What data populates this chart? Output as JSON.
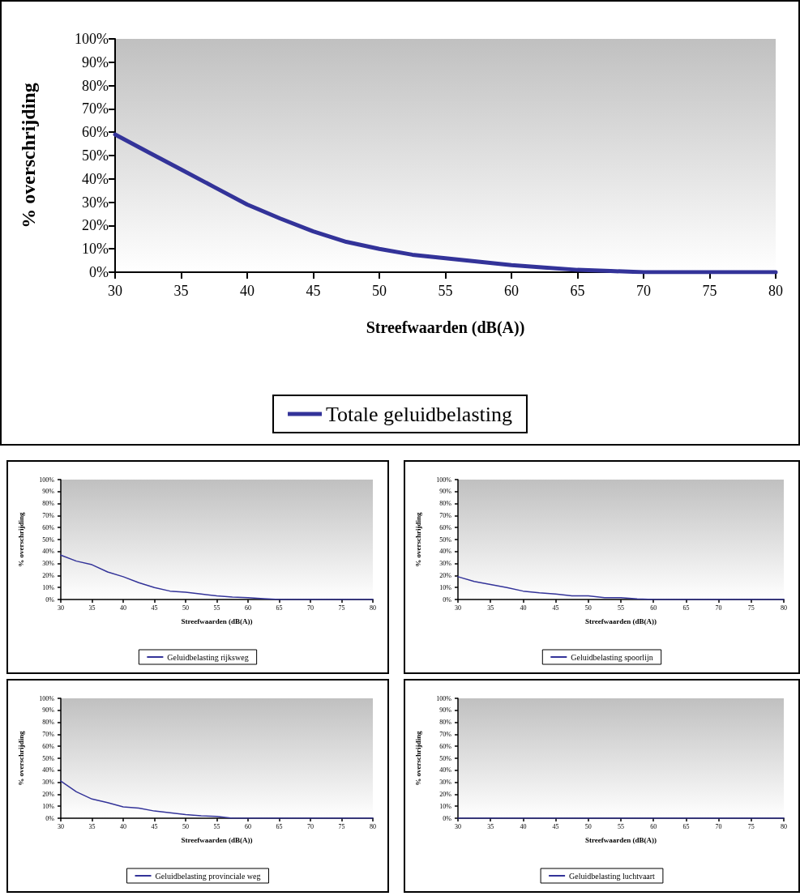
{
  "chart_data": [
    {
      "type": "line",
      "xlabel": "Streefwaarden (dB(A))",
      "ylabel": "% overschrijding",
      "x": [
        30,
        32.5,
        35,
        37.5,
        40,
        42.5,
        45,
        47.5,
        50,
        52.5,
        55,
        57.5,
        60,
        62.5,
        65,
        67.5,
        70,
        72.5,
        75,
        77.5,
        80
      ],
      "series": [
        {
          "name": "Totale geluidbelasting",
          "color": "#333399",
          "values": [
            59,
            51.5,
            44,
            36.5,
            29,
            23,
            17.5,
            13,
            10,
            7.5,
            6,
            4.5,
            3,
            2,
            1,
            0.5,
            0,
            0,
            0,
            0,
            0
          ]
        }
      ],
      "xlim": [
        30,
        80
      ],
      "xticks": [
        30,
        35,
        40,
        45,
        50,
        55,
        60,
        65,
        70,
        75,
        80
      ],
      "ylim": [
        0,
        100
      ],
      "yticks": [
        {
          "value": 0,
          "label": "0%"
        },
        {
          "value": 10,
          "label": "10%"
        },
        {
          "value": 20,
          "label": "20%"
        },
        {
          "value": 30,
          "label": "30%"
        },
        {
          "value": 40,
          "label": "40%"
        },
        {
          "value": 50,
          "label": "50%"
        },
        {
          "value": 60,
          "label": "60%"
        },
        {
          "value": 70,
          "label": "70%"
        },
        {
          "value": 80,
          "label": "80%"
        },
        {
          "value": 90,
          "label": "90%"
        },
        {
          "value": 100,
          "label": "100%"
        }
      ],
      "grid": false,
      "legend": "bottom",
      "marker": "none",
      "line_style": "solid"
    },
    {
      "type": "line",
      "xlabel": "Streefwaarden (dB(A))",
      "ylabel": "% overschrijding",
      "x": [
        30,
        32.5,
        35,
        37.5,
        40,
        42.5,
        45,
        47.5,
        50,
        52.5,
        55,
        57.5,
        60,
        62.5,
        65,
        67.5,
        70,
        72.5,
        75,
        77.5,
        80
      ],
      "series": [
        {
          "name": "Geluidbelasting rijksweg",
          "color": "#333399",
          "values": [
            37,
            32,
            29,
            23,
            19,
            14,
            10,
            7,
            6,
            4.5,
            3,
            2,
            1.5,
            0.7,
            0,
            0,
            0,
            0,
            0,
            0,
            0
          ]
        }
      ],
      "xlim": [
        30,
        80
      ],
      "xticks": [
        30,
        35,
        40,
        45,
        50,
        55,
        60,
        65,
        70,
        75,
        80
      ],
      "ylim": [
        0,
        100
      ],
      "yticks": [
        {
          "value": 0,
          "label": "0%"
        },
        {
          "value": 10,
          "label": "10%"
        },
        {
          "value": 20,
          "label": "20%"
        },
        {
          "value": 30,
          "label": "30%"
        },
        {
          "value": 40,
          "label": "40%"
        },
        {
          "value": 50,
          "label": "50%"
        },
        {
          "value": 60,
          "label": "60%"
        },
        {
          "value": 70,
          "label": "70%"
        },
        {
          "value": 80,
          "label": "80%"
        },
        {
          "value": 90,
          "label": "90%"
        },
        {
          "value": 100,
          "label": "100%"
        }
      ],
      "grid": false,
      "legend": "bottom",
      "marker": "none",
      "line_style": "solid"
    },
    {
      "type": "line",
      "xlabel": "Streefwaarden (dB(A))",
      "ylabel": "% overschrijding",
      "x": [
        30,
        32.5,
        35,
        37.5,
        40,
        42.5,
        45,
        47.5,
        50,
        52.5,
        55,
        57.5,
        60,
        62.5,
        65,
        67.5,
        70,
        72.5,
        75,
        77.5,
        80
      ],
      "series": [
        {
          "name": "Geluidbelasting spoorlijn",
          "color": "#333399",
          "values": [
            19,
            15,
            12.5,
            10,
            7,
            5.5,
            4.5,
            3,
            3,
            1.5,
            1.5,
            0.5,
            0,
            0,
            0,
            0,
            0,
            0,
            0,
            0,
            0
          ]
        }
      ],
      "xlim": [
        30,
        80
      ],
      "xticks": [
        30,
        35,
        40,
        45,
        50,
        55,
        60,
        65,
        70,
        75,
        80
      ],
      "ylim": [
        0,
        100
      ],
      "yticks": [
        {
          "value": 0,
          "label": "0%"
        },
        {
          "value": 10,
          "label": "10%"
        },
        {
          "value": 20,
          "label": "20%"
        },
        {
          "value": 30,
          "label": "30%"
        },
        {
          "value": 40,
          "label": "40%"
        },
        {
          "value": 50,
          "label": "50%"
        },
        {
          "value": 60,
          "label": "60%"
        },
        {
          "value": 70,
          "label": "70%"
        },
        {
          "value": 80,
          "label": "80%"
        },
        {
          "value": 90,
          "label": "90%"
        },
        {
          "value": 100,
          "label": "100%"
        }
      ],
      "grid": false,
      "legend": "bottom",
      "marker": "none",
      "line_style": "solid"
    },
    {
      "type": "line",
      "xlabel": "Streefwaarden (dB(A))",
      "ylabel": "% overschrijding",
      "x": [
        30,
        32.5,
        35,
        37.5,
        40,
        42.5,
        45,
        47.5,
        50,
        52.5,
        55,
        57.5,
        60,
        62.5,
        65,
        67.5,
        70,
        72.5,
        75,
        77.5,
        80
      ],
      "series": [
        {
          "name": "Geluidbelasting provinciale weg",
          "color": "#333399",
          "values": [
            31,
            22,
            16,
            13,
            9.5,
            8.5,
            6,
            4.5,
            3,
            2,
            1.5,
            0,
            0,
            0,
            0,
            0,
            0,
            0,
            0,
            0,
            0
          ]
        }
      ],
      "xlim": [
        30,
        80
      ],
      "xticks": [
        30,
        35,
        40,
        45,
        50,
        55,
        60,
        65,
        70,
        75,
        80
      ],
      "ylim": [
        0,
        100
      ],
      "yticks": [
        {
          "value": 0,
          "label": "0%"
        },
        {
          "value": 10,
          "label": "10%"
        },
        {
          "value": 20,
          "label": "20%"
        },
        {
          "value": 30,
          "label": "30%"
        },
        {
          "value": 40,
          "label": "40%"
        },
        {
          "value": 50,
          "label": "50%"
        },
        {
          "value": 60,
          "label": "60%"
        },
        {
          "value": 70,
          "label": "70%"
        },
        {
          "value": 80,
          "label": "80%"
        },
        {
          "value": 90,
          "label": "90%"
        },
        {
          "value": 100,
          "label": "100%"
        }
      ],
      "grid": false,
      "legend": "bottom",
      "marker": "none",
      "line_style": "solid"
    },
    {
      "type": "line",
      "xlabel": "Streefwaarden (dB(A))",
      "ylabel": "% overschrijding",
      "x": [
        30,
        32.5,
        35,
        37.5,
        40,
        42.5,
        45,
        47.5,
        50,
        52.5,
        55,
        57.5,
        60,
        62.5,
        65,
        67.5,
        70,
        72.5,
        75,
        77.5,
        80
      ],
      "series": [
        {
          "name": "Geluidbelasting luchtvaart",
          "color": "#333399",
          "values": [
            0,
            0,
            0,
            0,
            0,
            0,
            0,
            0,
            0,
            0,
            0,
            0,
            0,
            0,
            0,
            0,
            0,
            0,
            0,
            0,
            0
          ]
        }
      ],
      "xlim": [
        30,
        80
      ],
      "xticks": [
        30,
        35,
        40,
        45,
        50,
        55,
        60,
        65,
        70,
        75,
        80
      ],
      "ylim": [
        0,
        100
      ],
      "yticks": [
        {
          "value": 0,
          "label": "0%"
        },
        {
          "value": 10,
          "label": "10%"
        },
        {
          "value": 20,
          "label": "20%"
        },
        {
          "value": 30,
          "label": "30%"
        },
        {
          "value": 40,
          "label": "40%"
        },
        {
          "value": 50,
          "label": "50%"
        },
        {
          "value": 60,
          "label": "60%"
        },
        {
          "value": 70,
          "label": "70%"
        },
        {
          "value": 80,
          "label": "80%"
        },
        {
          "value": 90,
          "label": "90%"
        },
        {
          "value": 100,
          "label": "100%"
        }
      ],
      "grid": false,
      "legend": "bottom",
      "marker": "none",
      "line_style": "solid"
    }
  ]
}
